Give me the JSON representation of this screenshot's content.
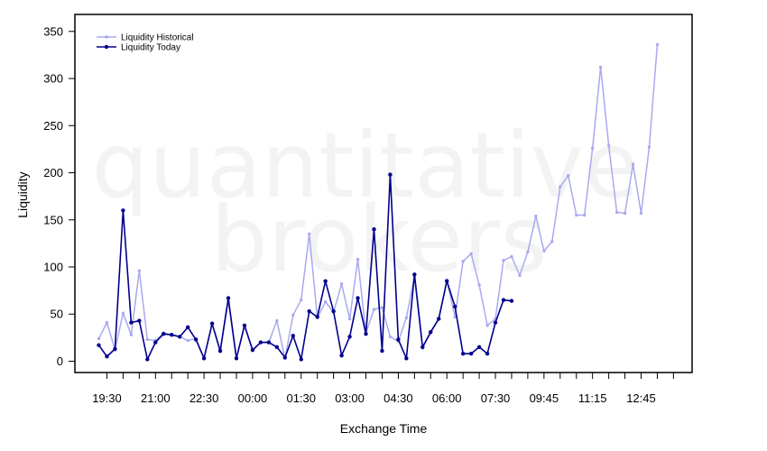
{
  "watermark": {
    "line1": "quantitative",
    "line2": "brokers"
  },
  "chart_data": {
    "type": "line",
    "title": "",
    "xlabel": "Exchange Time",
    "ylabel": "Liquidity",
    "ylim": [
      -12,
      368
    ],
    "yticks": [
      0,
      50,
      100,
      150,
      200,
      250,
      300,
      350
    ],
    "xtick_labels": [
      "19:30",
      "21:00",
      "22:30",
      "00:00",
      "01:30",
      "03:00",
      "04:30",
      "06:00",
      "07:30",
      "09:45",
      "11:15",
      "12:45"
    ],
    "legend_position": "top-left",
    "grid": false,
    "x_count": 72,
    "series": [
      {
        "name": "Liquidity Historical",
        "color": "#a9a9f0",
        "values": [
          24,
          41,
          12,
          51,
          28,
          96,
          23,
          22,
          30,
          28,
          26,
          22,
          24,
          3,
          40,
          10,
          64,
          3,
          38,
          11,
          20,
          20,
          43,
          3,
          49,
          65,
          135,
          46,
          63,
          52,
          82,
          45,
          108,
          30,
          55,
          57,
          26,
          21,
          46,
          90,
          14,
          30,
          45,
          86,
          47,
          106,
          114,
          81,
          38,
          45,
          107,
          111,
          91,
          116,
          154,
          117,
          127,
          185,
          197,
          155,
          155,
          226,
          312,
          229,
          158,
          157,
          209,
          157,
          227,
          336
        ]
      },
      {
        "name": "Liquidity Today",
        "color": "#00008b",
        "values": [
          17,
          5,
          13,
          160,
          41,
          43,
          2,
          20,
          29,
          28,
          26,
          36,
          23,
          3,
          40,
          11,
          67,
          3,
          38,
          12,
          20,
          20,
          15,
          4,
          27,
          2,
          53,
          47,
          85,
          53,
          6,
          26,
          67,
          29,
          140,
          11,
          198,
          23,
          3,
          92,
          15,
          31,
          45,
          85,
          58,
          8,
          8,
          15,
          8,
          41,
          65,
          64
        ]
      }
    ]
  }
}
